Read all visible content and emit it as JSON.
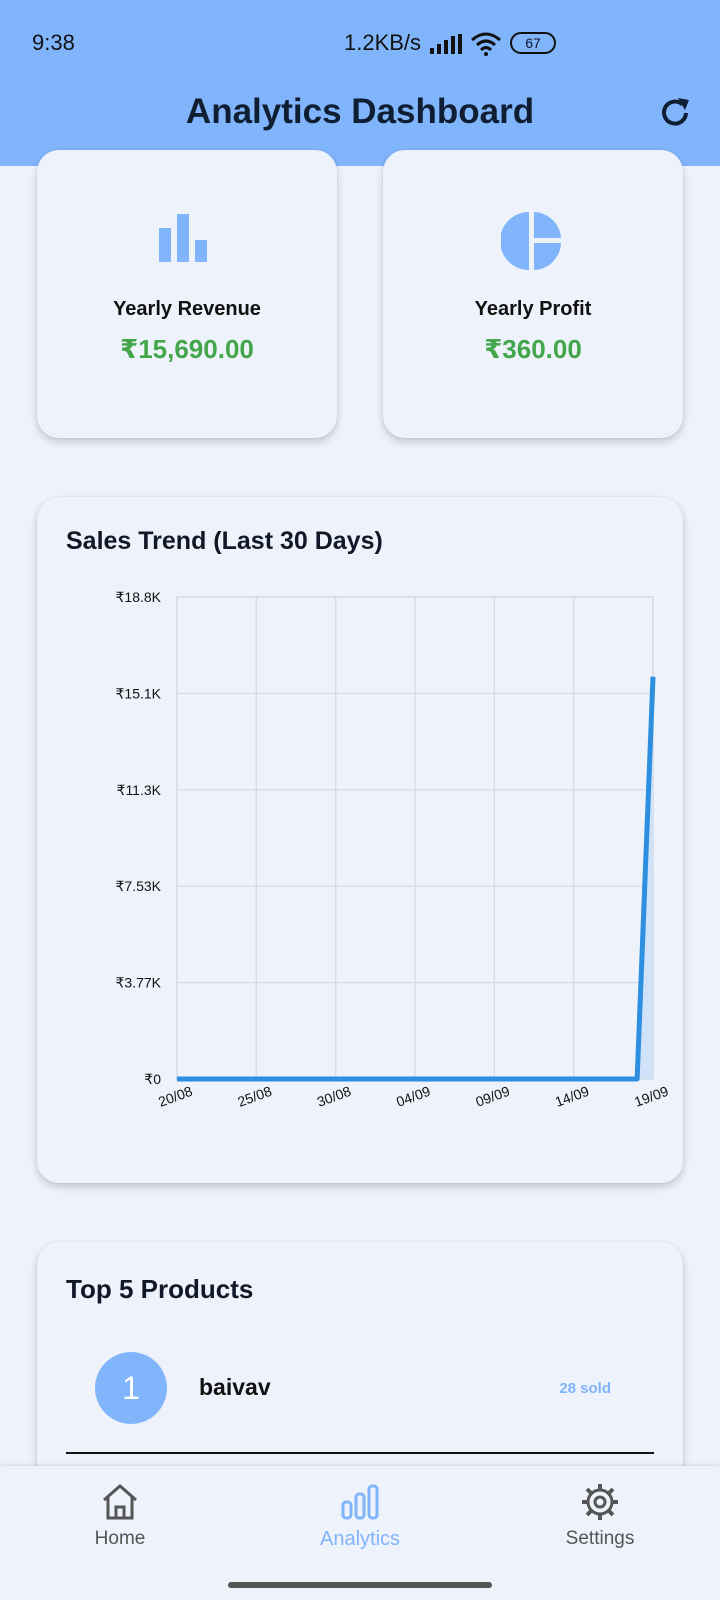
{
  "status_bar": {
    "time": "9:38",
    "net_speed": "1.2KB/s",
    "battery": "67"
  },
  "appbar": {
    "title": "Analytics Dashboard",
    "refresh_icon": "refresh-icon"
  },
  "stats": {
    "revenue": {
      "label": "Yearly Revenue",
      "value": "₹15,690.00",
      "icon": "bar-chart-icon"
    },
    "profit": {
      "label": "Yearly Profit",
      "value": "₹360.00",
      "icon": "pie-chart-icon"
    }
  },
  "sales_card": {
    "title": "Sales Trend (Last 30 Days)"
  },
  "chart_data": {
    "type": "area",
    "title": "Sales Trend (Last 30 Days)",
    "x_tick_labels": [
      "20/08",
      "25/08",
      "30/08",
      "04/09",
      "09/09",
      "14/09",
      "19/09"
    ],
    "y_tick_labels": [
      "₹0",
      "₹3.77K",
      "₹7.53K",
      "₹11.3K",
      "₹15.1K",
      "₹18.8K"
    ],
    "ylim": [
      0,
      18800
    ],
    "x": [
      "20/08",
      "21/08",
      "22/08",
      "23/08",
      "24/08",
      "25/08",
      "26/08",
      "27/08",
      "28/08",
      "29/08",
      "30/08",
      "31/08",
      "01/09",
      "02/09",
      "03/09",
      "04/09",
      "05/09",
      "06/09",
      "07/09",
      "08/09",
      "09/09",
      "10/09",
      "11/09",
      "12/09",
      "13/09",
      "14/09",
      "15/09",
      "16/09",
      "17/09",
      "18/09",
      "19/09"
    ],
    "values": [
      0,
      0,
      0,
      0,
      0,
      0,
      0,
      0,
      0,
      0,
      0,
      0,
      0,
      0,
      0,
      0,
      0,
      0,
      0,
      0,
      0,
      0,
      0,
      0,
      0,
      0,
      0,
      0,
      0,
      0,
      15690
    ],
    "color": "#2e8fe0",
    "fill": "#cfe2fa",
    "grid": true
  },
  "products": {
    "title": "Top 5 Products",
    "items": [
      {
        "rank": "1",
        "name": "baivav",
        "sold": "28 sold"
      }
    ]
  },
  "nav": {
    "items": [
      {
        "label": "Home",
        "icon": "home-icon"
      },
      {
        "label": "Analytics",
        "icon": "analytics-icon"
      },
      {
        "label": "Settings",
        "icon": "settings-icon"
      }
    ]
  },
  "colors": {
    "appbar": "#80b4fb",
    "accent": "#80b4fb",
    "money": "#43a64a",
    "line": "#2e8fe0"
  }
}
